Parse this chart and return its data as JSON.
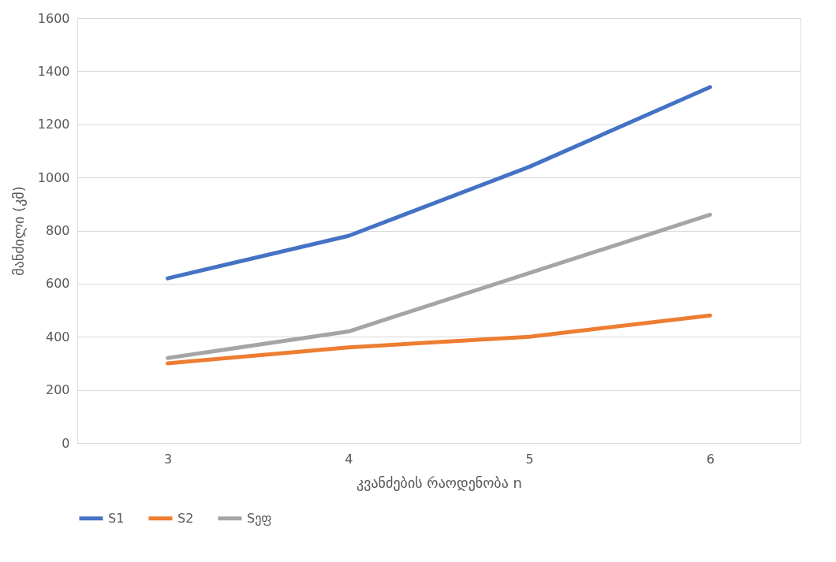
{
  "chart_data": {
    "type": "line",
    "xlabel": "კვანძების რაოდენობა n",
    "ylabel": "მანძილი (კმ)",
    "categories": [
      "3",
      "4",
      "5",
      "6"
    ],
    "series": [
      {
        "name": "S1",
        "color": "#4472c4",
        "values": [
          620,
          780,
          1040,
          1340
        ]
      },
      {
        "name": "S2",
        "color": "#ed7d31",
        "values": [
          300,
          360,
          400,
          480
        ]
      },
      {
        "name": "Sეფ",
        "color": "#a5a5a5",
        "values": [
          320,
          420,
          640,
          860
        ]
      }
    ],
    "ylim": [
      0,
      1600
    ],
    "yticks": [
      0,
      200,
      400,
      600,
      800,
      1000,
      1200,
      1400,
      1600
    ],
    "grid": "y",
    "legend": "bottom",
    "marker": "none",
    "line_style": "solid"
  }
}
